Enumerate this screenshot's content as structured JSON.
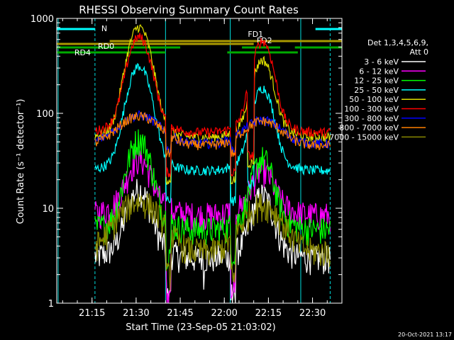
{
  "chart_data": {
    "type": "line",
    "title": "RHESSI Observing Summary Count Rates",
    "xlabel": "Start Time (23-Sep-05 21:03:02)",
    "ylabel": "Count Rate (s⁻¹ detector⁻¹)",
    "yscale": "log",
    "ylim": [
      1,
      1000
    ],
    "xlim_minutes": [
      0,
      97
    ],
    "x_unit": "minutes after 21:03:02",
    "xticks": [
      {
        "t": 12,
        "label": "21:15"
      },
      {
        "t": 27,
        "label": "21:30"
      },
      {
        "t": 42,
        "label": "21:45"
      },
      {
        "t": 57,
        "label": "22:00"
      },
      {
        "t": 72,
        "label": "22:15"
      },
      {
        "t": 87,
        "label": "22:30"
      }
    ],
    "yticks": [
      {
        "v": 1,
        "label": "1"
      },
      {
        "v": 10,
        "label": "10"
      },
      {
        "v": 100,
        "label": "100"
      },
      {
        "v": 1000,
        "label": "1000"
      }
    ],
    "legend_header": [
      "Det 1,3,4,5,6,9,",
      "Att 0"
    ],
    "series": [
      {
        "name": "3 - 6 keV",
        "color": "#ffffff",
        "base": 3,
        "p1": 14,
        "p2": 12,
        "dip": 1.1
      },
      {
        "name": "6 - 12 keV",
        "color": "#ff00ff",
        "base": 8.5,
        "p1": 28,
        "p2": 20,
        "dip": 1.1
      },
      {
        "name": "12 - 25 keV",
        "color": "#00ff00",
        "base": 6.0,
        "p1": 50,
        "p2": 30,
        "dip": 3.5
      },
      {
        "name": "25 - 50 keV",
        "color": "#00ffff",
        "base": 25,
        "p1": 300,
        "p2": 170,
        "dip": 12
      },
      {
        "name": "50 - 100 keV",
        "color": "#dddd00",
        "base": 56,
        "p1": 780,
        "p2": 330,
        "dip": 20
      },
      {
        "name": "100 - 300 keV",
        "color": "#ff0000",
        "base": 63,
        "p1": 600,
        "p2": 540,
        "dip": 24
      },
      {
        "name": "300 - 800 keV",
        "color": "#0000ff",
        "base": 48,
        "p1": 95,
        "p2": 85,
        "dip": 42
      },
      {
        "name": "800 - 7000 keV",
        "color": "#ff8000",
        "base": 46,
        "p1": 93,
        "p2": 83,
        "dip": 38
      },
      {
        "name": "7000 - 15000 keV",
        "color": "#888800",
        "base": 3.5,
        "p1": 12,
        "p2": 11,
        "dip": 2
      }
    ],
    "annotations": {
      "night": {
        "label": "N",
        "color": "#00ffff",
        "intervals": [
          [
            0,
            13
          ],
          [
            88,
            97
          ]
        ]
      },
      "fd1": {
        "label": "FD1",
        "color": "#aa9900",
        "start": 18,
        "end": 97
      },
      "fd2": {
        "label": "FD2",
        "color": "#aa9900",
        "start": 0,
        "end": 67
      },
      "rd0": {
        "label": "RD0",
        "color": "#00aa00",
        "intervals": [
          [
            0,
            42
          ],
          [
            63,
            76
          ],
          [
            81,
            97
          ]
        ]
      },
      "rd4": {
        "label": "RD4",
        "color": "#00aa00",
        "intervals": [
          [
            0,
            37
          ],
          [
            58,
            82
          ]
        ]
      }
    },
    "night_boundaries_minutes": [
      13,
      37,
      59,
      83,
      93
    ]
  },
  "footer": {
    "date": "20-Oct-2021 13:17"
  }
}
